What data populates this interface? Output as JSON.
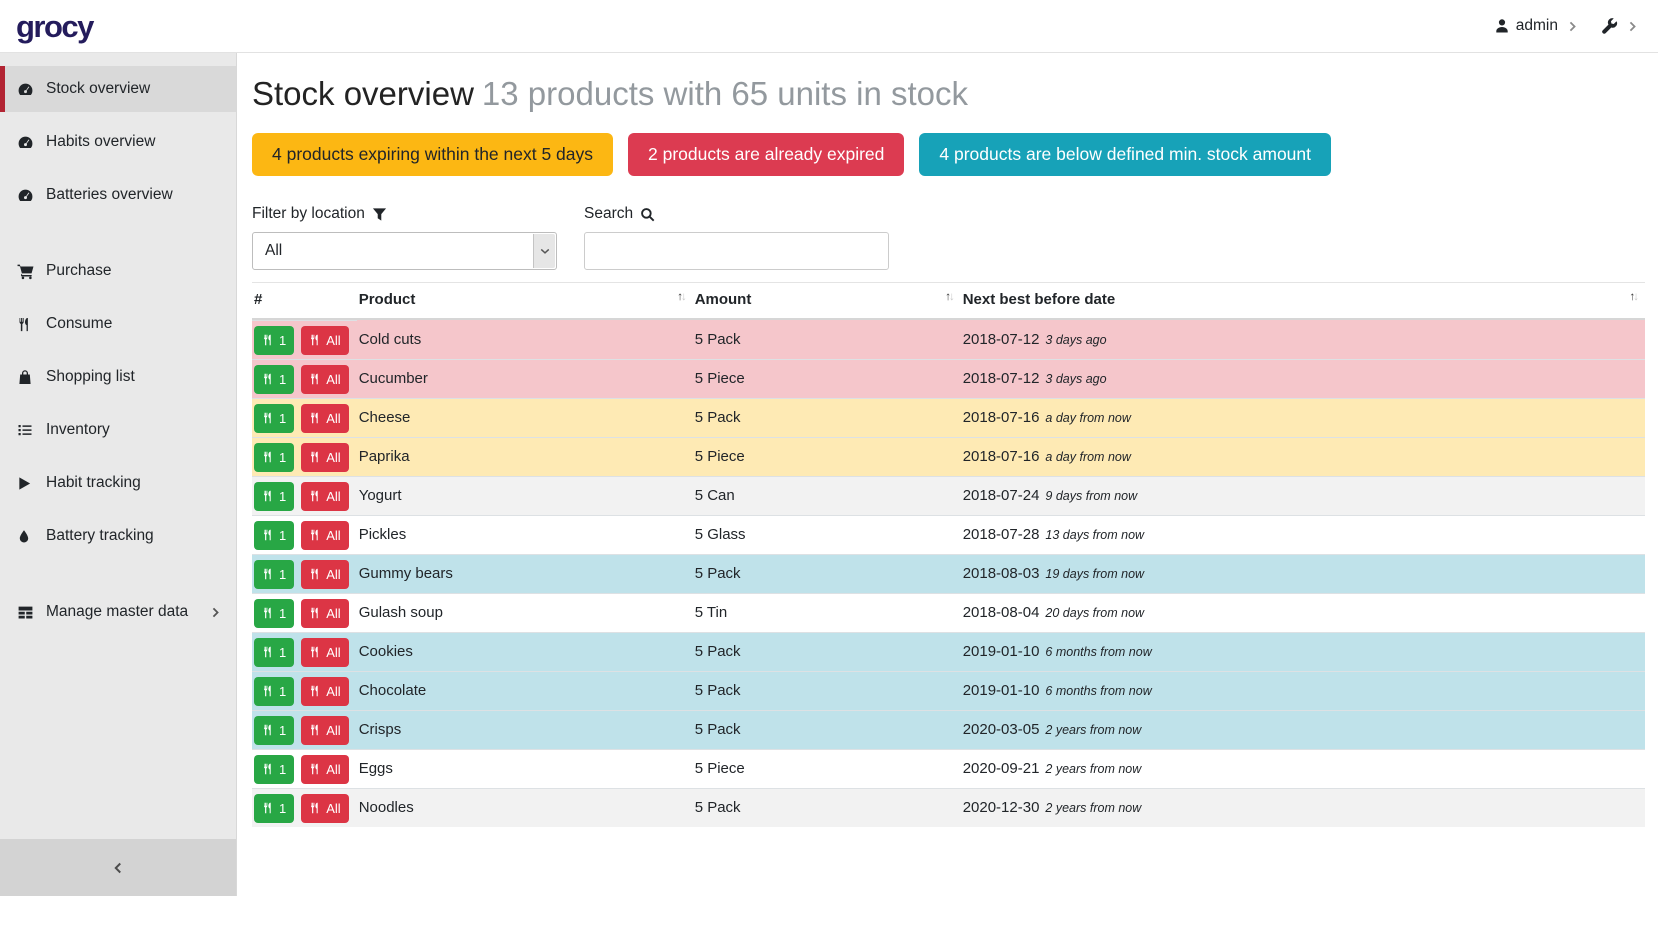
{
  "topbar": {
    "logo": "grocy",
    "user": "admin"
  },
  "sidebar": {
    "items": [
      {
        "label": "Stock overview",
        "icon": "gauge-icon",
        "active": true,
        "gap_before": false,
        "chevron": false
      },
      {
        "label": "Habits overview",
        "icon": "gauge-icon",
        "active": false,
        "gap_before": false,
        "chevron": false
      },
      {
        "label": "Batteries overview",
        "icon": "gauge-icon",
        "active": false,
        "gap_before": false,
        "chevron": false
      },
      {
        "label": "Purchase",
        "icon": "cart-icon",
        "active": false,
        "gap_before": true,
        "chevron": false
      },
      {
        "label": "Consume",
        "icon": "utensils-icon",
        "active": false,
        "gap_before": false,
        "chevron": false
      },
      {
        "label": "Shopping list",
        "icon": "bag-icon",
        "active": false,
        "gap_before": false,
        "chevron": false
      },
      {
        "label": "Inventory",
        "icon": "list-icon",
        "active": false,
        "gap_before": false,
        "chevron": false
      },
      {
        "label": "Habit tracking",
        "icon": "play-icon",
        "active": false,
        "gap_before": false,
        "chevron": false
      },
      {
        "label": "Battery tracking",
        "icon": "droplet-icon",
        "active": false,
        "gap_before": false,
        "chevron": false
      },
      {
        "label": "Manage master data",
        "icon": "grid-icon",
        "active": false,
        "gap_before": true,
        "chevron": true
      }
    ]
  },
  "header": {
    "title": "Stock overview",
    "subtitle": "13 products with 65 units in stock"
  },
  "banners": [
    {
      "id": "expiring",
      "text": "4 products expiring within the next 5 days",
      "bg": "#fcb713",
      "fg": "#212529"
    },
    {
      "id": "expired",
      "text": "2 products are already expired",
      "bg": "#dc3b51",
      "fg": "#ffffff"
    },
    {
      "id": "below-min",
      "text": "4 products are below defined min. stock amount",
      "bg": "#17a2b8",
      "fg": "#ffffff"
    }
  ],
  "filters": {
    "location_label": "Filter by location",
    "location_value": "All",
    "search_label": "Search",
    "search_value": ""
  },
  "table": {
    "headers": [
      "#",
      "Product",
      "Amount",
      "Next best before date"
    ],
    "consume_one_label": "1",
    "consume_all_label": "All",
    "button_colors": {
      "one": "#28a745",
      "all": "#dc3545"
    },
    "status_colors": {
      "expired": "#f5c6cb",
      "expiring": "#feeab4",
      "below-min": "#bfe2ea",
      "stripe": "#f2f2f2",
      "none": "#ffffff"
    },
    "rows": [
      {
        "product": "Cold cuts",
        "amount": "5 Pack",
        "date": "2018-07-12",
        "relative": "3 days ago",
        "status": "expired"
      },
      {
        "product": "Cucumber",
        "amount": "5 Piece",
        "date": "2018-07-12",
        "relative": "3 days ago",
        "status": "expired"
      },
      {
        "product": "Cheese",
        "amount": "5 Pack",
        "date": "2018-07-16",
        "relative": "a day from now",
        "status": "expiring"
      },
      {
        "product": "Paprika",
        "amount": "5 Piece",
        "date": "2018-07-16",
        "relative": "a day from now",
        "status": "expiring"
      },
      {
        "product": "Yogurt",
        "amount": "5 Can",
        "date": "2018-07-24",
        "relative": "9 days from now",
        "status": "stripe"
      },
      {
        "product": "Pickles",
        "amount": "5 Glass",
        "date": "2018-07-28",
        "relative": "13 days from now",
        "status": "none"
      },
      {
        "product": "Gummy bears",
        "amount": "5 Pack",
        "date": "2018-08-03",
        "relative": "19 days from now",
        "status": "below-min"
      },
      {
        "product": "Gulash soup",
        "amount": "5 Tin",
        "date": "2018-08-04",
        "relative": "20 days from now",
        "status": "none"
      },
      {
        "product": "Cookies",
        "amount": "5 Pack",
        "date": "2019-01-10",
        "relative": "6 months from now",
        "status": "below-min"
      },
      {
        "product": "Chocolate",
        "amount": "5 Pack",
        "date": "2019-01-10",
        "relative": "6 months from now",
        "status": "below-min"
      },
      {
        "product": "Crisps",
        "amount": "5 Pack",
        "date": "2020-03-05",
        "relative": "2 years from now",
        "status": "below-min"
      },
      {
        "product": "Eggs",
        "amount": "5 Piece",
        "date": "2020-09-21",
        "relative": "2 years from now",
        "status": "none"
      },
      {
        "product": "Noodles",
        "amount": "5 Pack",
        "date": "2020-12-30",
        "relative": "2 years from now",
        "status": "stripe"
      }
    ]
  }
}
